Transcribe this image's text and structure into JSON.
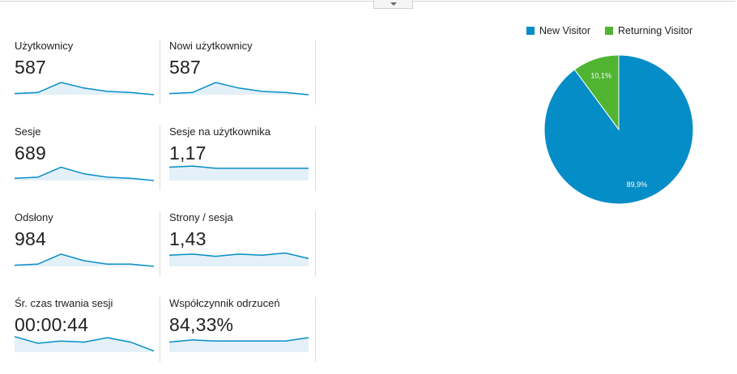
{
  "metrics": [
    {
      "label": "Użytkownicy",
      "value": "587",
      "trend": [
        15,
        14,
        5,
        10,
        13,
        14,
        16
      ]
    },
    {
      "label": "Nowi użytkownicy",
      "value": "587",
      "trend": [
        15,
        14,
        5,
        10,
        13,
        14,
        16
      ]
    },
    {
      "label": "Sesje",
      "value": "689",
      "trend": [
        14,
        13,
        4,
        10,
        13,
        14,
        16
      ]
    },
    {
      "label": "Sesje na użytkownika",
      "value": "1,17",
      "trend": [
        4,
        3,
        5,
        5,
        5,
        5,
        5
      ]
    },
    {
      "label": "Odsłony",
      "value": "984",
      "trend": [
        15,
        14,
        5,
        11,
        14,
        14,
        16
      ]
    },
    {
      "label": "Strony / sesja",
      "value": "1,43",
      "trend": [
        6,
        5,
        7,
        5,
        6,
        4,
        9
      ]
    },
    {
      "label": "Śr. czas trwania sesji",
      "value": "00:00:44",
      "trend": [
        2,
        8,
        6,
        7,
        3,
        7,
        15
      ]
    },
    {
      "label": "Współczynnik odrzuceń",
      "value": "84,33%",
      "trend": [
        7,
        5,
        6,
        6,
        6,
        6,
        3
      ]
    }
  ],
  "chart_data": {
    "type": "pie",
    "series": [
      {
        "name": "New Visitor",
        "value": 89.9,
        "label": "89,9%",
        "color": "#058dc7"
      },
      {
        "name": "Returning Visitor",
        "value": 10.1,
        "label": "10,1%",
        "color": "#50b432"
      }
    ],
    "legend_position": "top"
  },
  "colors": {
    "sparkline": "#058dc7",
    "sparkline_fill": "#e3f0f8"
  }
}
